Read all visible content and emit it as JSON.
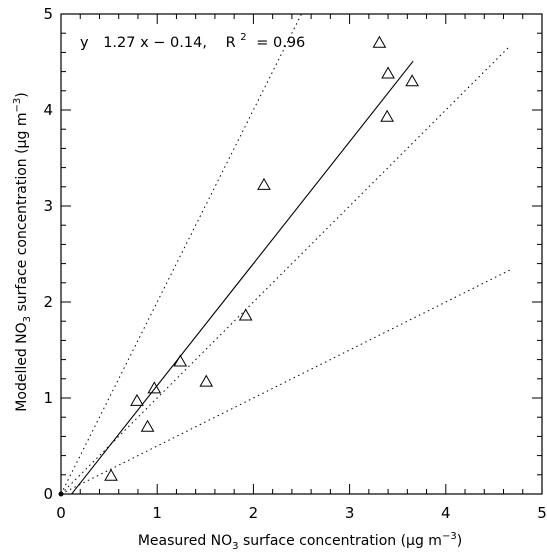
{
  "chart_data": {
    "type": "scatter",
    "title": "",
    "equation": {
      "lhs": "y",
      "rhs": "1.27 x − 0.14,",
      "r_label": "R",
      "r_sup": "2",
      "r_value": "= 0.96"
    },
    "xlabel": {
      "pre": "Measured NO",
      "sub": "3",
      "post": " surface concentration (",
      "mu": "μ",
      "unit": "g m",
      "exp": "−3",
      "close": ")"
    },
    "ylabel": {
      "pre": "Modelled NO",
      "sub": "3",
      "post": " surface concentration (",
      "mu": "μ",
      "unit": "g m",
      "exp": "−3",
      "close": ")"
    },
    "xlim": [
      0,
      5
    ],
    "ylim": [
      0,
      5
    ],
    "xticks": [
      0,
      1,
      2,
      3,
      4,
      5
    ],
    "yticks": [
      0,
      1,
      2,
      3,
      4,
      5
    ],
    "grid": false,
    "marker": "open-triangle",
    "points": [
      {
        "x": 0.52,
        "y": 0.19
      },
      {
        "x": 0.79,
        "y": 0.97
      },
      {
        "x": 0.9,
        "y": 0.7
      },
      {
        "x": 0.97,
        "y": 1.1
      },
      {
        "x": 1.24,
        "y": 1.38
      },
      {
        "x": 1.51,
        "y": 1.17
      },
      {
        "x": 1.92,
        "y": 1.86
      },
      {
        "x": 2.11,
        "y": 3.22
      },
      {
        "x": 3.31,
        "y": 4.7
      },
      {
        "x": 3.4,
        "y": 4.38
      },
      {
        "x": 3.65,
        "y": 4.3
      },
      {
        "x": 3.39,
        "y": 3.93
      }
    ],
    "regression": {
      "slope": 1.27,
      "intercept": -0.14,
      "x_range": [
        0.11,
        3.66
      ]
    },
    "reference_lines": [
      {
        "slope": 2.0,
        "x_range": [
          0,
          2.5
        ]
      },
      {
        "slope": 1.0,
        "x_range": [
          0,
          4.67
        ]
      },
      {
        "slope": 0.5,
        "x_range": [
          0,
          4.67
        ]
      }
    ]
  }
}
